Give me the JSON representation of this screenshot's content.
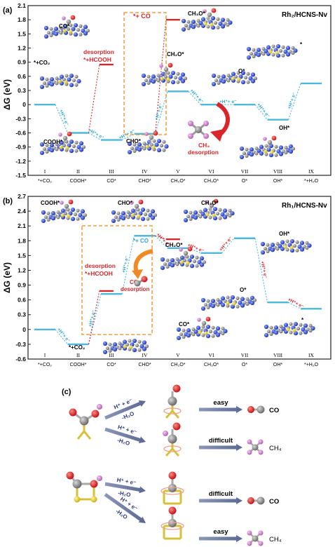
{
  "colors": {
    "blue_level": "#4bb8dc",
    "cyan_text": "#2aa7d2",
    "red": "#d9262a",
    "orange": "#f08a24",
    "axis": "#222222"
  },
  "panel_a": {
    "label": "(a)",
    "title": "Rh₂/HCNS-Nv",
    "ylabel": "ΔG (eV)",
    "ylim": [
      -1.5,
      2.1
    ],
    "yticks": [
      "2.1",
      "1.8",
      "1.5",
      "1.2",
      "0.9",
      "0.6",
      "0.3",
      "0",
      "-0.3",
      "-0.6",
      "-0.9",
      "-1.2",
      "-1.5"
    ],
    "roman": [
      "I",
      "II",
      "III",
      "IV",
      "V",
      "VI",
      "VII",
      "VIII",
      "IX"
    ],
    "states": [
      "*+CO₂",
      "COOH*",
      "CO*",
      "CHO*",
      "CH₂O*",
      "CH₃O*",
      "O*",
      "OH*",
      "*+H₂O"
    ],
    "levels": [
      0,
      -0.6,
      -0.75,
      -0.62,
      0.28,
      0.0,
      0.0,
      -0.32,
      0.45
    ],
    "side_levels": [
      {
        "label": "*+HCOOH",
        "value": 0.85,
        "after": 1
      },
      {
        "label": "*+CO",
        "value": 1.8,
        "after": 3
      }
    ],
    "step_label": "+H⁺+ e⁻",
    "desorption_hcooh": [
      "desorption",
      "*+HCOOH"
    ],
    "desorption_co": "*+ CO",
    "desorption_ch4": [
      "CH₄",
      "desorption"
    ],
    "structures": [
      "CO*",
      "*+CO₂",
      "COOH*",
      "CHO*",
      "CH₃O*",
      "CH₂O*",
      "O*",
      "OH*",
      "*"
    ]
  },
  "panel_b": {
    "label": "(b)",
    "title": "Rh₁/HCNS-Nv",
    "ylabel": "ΔG (eV)",
    "ylim": [
      -0.6,
      2.7
    ],
    "yticks": [
      "2.7",
      "2.4",
      "2.1",
      "1.8",
      "1.5",
      "1.2",
      "0.9",
      "0.6",
      "0.3",
      "0",
      "-0.3",
      "-0.6"
    ],
    "roman": [
      "I",
      "II",
      "III",
      "IV",
      "V",
      "VI",
      "VII",
      "VIII",
      "IX"
    ],
    "states": [
      "*+CO₂",
      "COOH*",
      "CO*",
      "CHO*",
      "CH₂O*",
      "CH₃O*",
      "O*",
      "OH*",
      "*+H₂O"
    ],
    "levels": [
      0,
      -0.3,
      0.72,
      1.9,
      1.65,
      1.55,
      1.85,
      0.55,
      0.42
    ],
    "side_levels": [
      {
        "label": "*+HCOOH",
        "value": 0.78,
        "after": 1
      },
      {
        "label": "*+CO",
        "value": 1.83,
        "after": 3
      }
    ],
    "step_label": "+H⁺+ e⁻",
    "desorption_hcooh": [
      "desorption",
      "*+HCOOH"
    ],
    "co_side": "*+ CO",
    "co_desorption": [
      "CO",
      "desorption"
    ],
    "structures": [
      "COOH*",
      "CHO*",
      "CH₃O*",
      "OH*",
      "CH₂O*",
      "O*",
      "CO*",
      "*+CO₂",
      "*"
    ]
  },
  "panel_c": {
    "label": "(c)",
    "arrow_label_top": "H⁺ + e⁻",
    "arrow_label_bottom": "-H₂O",
    "rows": [
      {
        "verdict": "easy",
        "product": "CO"
      },
      {
        "verdict": "difficult",
        "product": "CH₄"
      },
      {
        "verdict": "difficult",
        "product": "CO"
      },
      {
        "verdict": "easy",
        "product": "CH₄"
      }
    ]
  }
}
